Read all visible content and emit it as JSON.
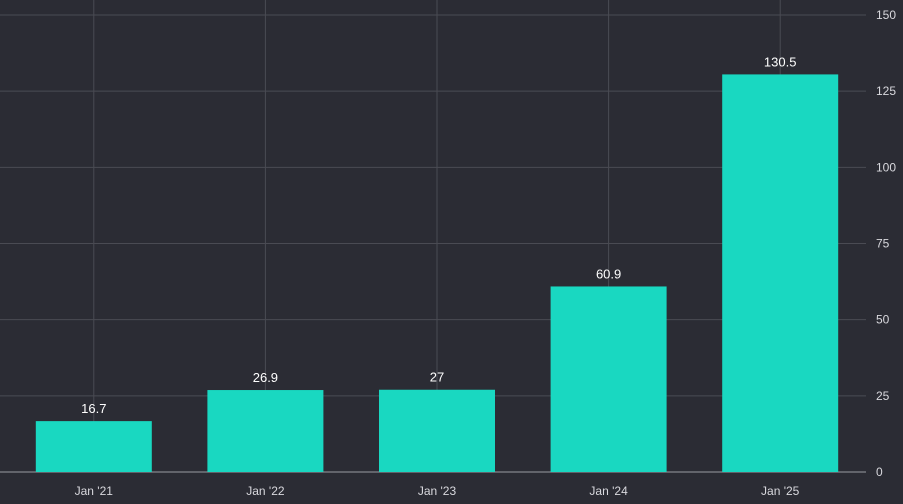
{
  "chart_data": {
    "type": "bar",
    "categories": [
      "Jan '21",
      "Jan '22",
      "Jan '23",
      "Jan '24",
      "Jan '25"
    ],
    "values": [
      16.7,
      26.9,
      27,
      60.9,
      130.5
    ],
    "data_labels": [
      "16.7",
      "26.9",
      "27",
      "60.9",
      "130.5"
    ],
    "ylim": [
      0,
      150
    ],
    "yticks": [
      0,
      25,
      50,
      75,
      100,
      125,
      150
    ],
    "y_axis_position": "right",
    "grid": true,
    "legend": "none",
    "colors": {
      "background": "#2b2c34",
      "bar": "#19d8c1",
      "grid": "#4a4b53",
      "text": "#d9d9de"
    }
  }
}
